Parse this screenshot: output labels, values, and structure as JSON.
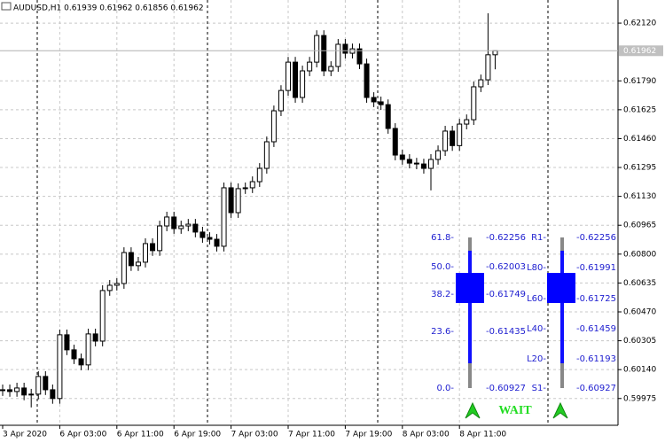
{
  "chart_data": {
    "type": "candlestick",
    "title": "AUDUSD,H1  0.61939 0.61962 0.61856 0.61962",
    "categories": [
      "3 Apr 2020",
      null,
      null,
      null,
      null,
      null,
      null,
      null,
      "6 Apr 03:00",
      null,
      null,
      null,
      null,
      null,
      null,
      null,
      "6 Apr 11:00",
      null,
      null,
      null,
      null,
      null,
      null,
      null,
      "6 Apr 19:00",
      null,
      null,
      null,
      null,
      null,
      null,
      null,
      "7 Apr 03:00",
      null,
      null,
      null,
      null,
      null,
      null,
      null,
      "7 Apr 11:00",
      null,
      null,
      null,
      null,
      null,
      null,
      null,
      "7 Apr 19:00",
      null,
      null,
      null,
      null,
      null,
      null,
      null,
      "8 Apr 03:00",
      null,
      null,
      null,
      null,
      null,
      null,
      null,
      "8 Apr 11:00",
      null,
      null,
      null,
      null,
      null
    ],
    "open": [
      0.6002,
      0.60025,
      0.60015,
      0.60035,
      0.59995,
      0.6,
      0.60101,
      0.60025,
      0.59975,
      0.60339,
      0.60253,
      0.60202,
      0.60167,
      0.60344,
      0.60303,
      0.60592,
      0.60622,
      0.60632,
      0.60809,
      0.60734,
      0.60754,
      0.6086,
      0.6082,
      0.60961,
      0.61012,
      0.60946,
      0.60961,
      0.60971,
      0.60926,
      0.60895,
      0.60885,
      0.60845,
      0.61179,
      0.61037,
      0.61174,
      0.61179,
      0.61214,
      0.6129,
      0.61442,
      0.61619,
      0.61735,
      0.61897,
      0.61695,
      0.61847,
      0.61897,
      0.62049,
      0.61847,
      0.61872,
      0.61999,
      0.61948,
      0.61973,
      0.61887,
      0.61695,
      0.6167,
      0.61654,
      0.61518,
      0.61366,
      0.61341,
      0.6132,
      0.61315,
      0.6129,
      0.61341,
      0.61391,
      0.61503,
      0.6142,
      0.61543,
      0.61568,
      0.61756,
      0.61796,
      0.61939
    ],
    "high": [
      0.60055,
      0.60055,
      0.60065,
      0.60065,
      0.6003,
      0.60131,
      0.60131,
      0.60055,
      0.60369,
      0.60369,
      0.60283,
      0.60232,
      0.60374,
      0.60374,
      0.60622,
      0.60652,
      0.60662,
      0.60839,
      0.60839,
      0.60784,
      0.6089,
      0.6089,
      0.60991,
      0.61042,
      0.61042,
      0.60991,
      0.61001,
      0.61001,
      0.60956,
      0.60925,
      0.60915,
      0.61209,
      0.61209,
      0.61204,
      0.61209,
      0.61244,
      0.6132,
      0.61472,
      0.61649,
      0.61765,
      0.61927,
      0.61927,
      0.61877,
      0.61927,
      0.62079,
      0.62079,
      0.61902,
      0.62029,
      0.62029,
      0.62003,
      0.62003,
      0.61917,
      0.61725,
      0.617,
      0.61684,
      0.61548,
      0.61396,
      0.61371,
      0.6135,
      0.61345,
      0.61371,
      0.61421,
      0.61533,
      0.61533,
      0.61573,
      0.61598,
      0.61786,
      0.61826,
      0.62176,
      0.61962
    ],
    "low": [
      0.5999,
      0.59985,
      0.59985,
      0.59965,
      0.59924,
      0.5997,
      0.59995,
      0.59945,
      0.59945,
      0.60223,
      0.60172,
      0.60137,
      0.60137,
      0.60273,
      0.60273,
      0.60562,
      0.60592,
      0.60602,
      0.60704,
      0.60704,
      0.60724,
      0.6079,
      0.6079,
      0.60931,
      0.60916,
      0.60916,
      0.60931,
      0.60896,
      0.60865,
      0.60855,
      0.60815,
      0.60815,
      0.61007,
      0.61007,
      0.61144,
      0.61149,
      0.61184,
      0.6126,
      0.61412,
      0.61589,
      0.61705,
      0.61665,
      0.61665,
      0.61817,
      0.61867,
      0.61817,
      0.61817,
      0.61842,
      0.61918,
      0.61918,
      0.61857,
      0.61665,
      0.6164,
      0.61624,
      0.61488,
      0.61336,
      0.61311,
      0.6129,
      0.61285,
      0.6126,
      0.61164,
      0.61311,
      0.61361,
      0.6139,
      0.6139,
      0.61513,
      0.61538,
      0.61726,
      0.61766,
      0.61856
    ],
    "close": [
      0.60025,
      0.60015,
      0.60035,
      0.59995,
      0.6,
      0.60101,
      0.60025,
      0.59975,
      0.60339,
      0.60253,
      0.60202,
      0.60167,
      0.60344,
      0.60303,
      0.60592,
      0.60622,
      0.60632,
      0.60809,
      0.60734,
      0.60754,
      0.6086,
      0.6082,
      0.60961,
      0.61012,
      0.60946,
      0.60961,
      0.60971,
      0.60926,
      0.60895,
      0.60885,
      0.60845,
      0.61179,
      0.61037,
      0.61174,
      0.61179,
      0.61214,
      0.6129,
      0.61442,
      0.61619,
      0.61735,
      0.61897,
      0.61695,
      0.61847,
      0.61897,
      0.62049,
      0.61847,
      0.61872,
      0.61999,
      0.61948,
      0.61973,
      0.61887,
      0.61695,
      0.6167,
      0.61654,
      0.61518,
      0.61366,
      0.61341,
      0.6132,
      0.61315,
      0.6129,
      0.61341,
      0.61391,
      0.61503,
      0.6142,
      0.61543,
      0.61568,
      0.61756,
      0.61796,
      0.61939,
      0.61962
    ],
    "current_price": 0.61962,
    "ylim": [
      0.59822,
      0.62252
    ],
    "yticks": [
      {
        "value": 0.6212,
        "label": "0.62120"
      },
      {
        "value": 0.6179,
        "label": "0.61790"
      },
      0.61625,
      {
        "value": 0.6146,
        "label": "0.61460"
      },
      0.61295,
      {
        "value": 0.6113,
        "label": "0.61130"
      },
      0.60965,
      {
        "value": 0.608,
        "label": "0.60800"
      },
      0.60635,
      {
        "value": 0.6047,
        "label": "0.60470"
      },
      0.60305,
      {
        "value": 0.6014,
        "label": "0.60140"
      },
      0.59975
    ],
    "grid": true,
    "fib_panel": {
      "labels": [
        "61.8-",
        "50.0-",
        "38.2-",
        "23.6-",
        "0.0-"
      ],
      "levels": [
        "-0.62256",
        "-0.62003",
        "-0.61749",
        "-0.61435",
        "-0.60927"
      ]
    },
    "level_panel": {
      "labels": [
        "R1-",
        "L80-",
        "L60-",
        "L40-",
        "L20-",
        "S1-"
      ],
      "levels": [
        "-0.62256",
        "-0.61991",
        "-0.61725",
        "-0.61459",
        "-0.61193",
        "-0.60927"
      ]
    },
    "signal": "WAIT"
  }
}
